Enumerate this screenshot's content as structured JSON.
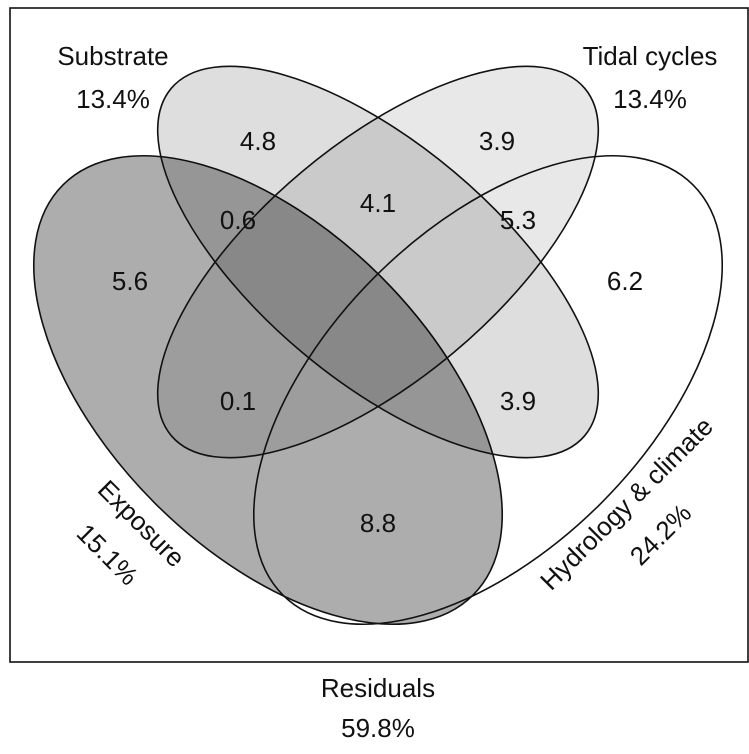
{
  "sets": [
    {
      "name": "Substrate",
      "value": "13.4%"
    },
    {
      "name": "Tidal cycles",
      "value": "13.4%"
    },
    {
      "name": "Exposure",
      "value": "15.1%"
    },
    {
      "name": "Hydrology & climate",
      "value": "24.2%"
    }
  ],
  "regions": [
    "4.8",
    "3.9",
    "4.1",
    "0.6",
    "5.3",
    "5.6",
    "6.2",
    "0.1",
    "3.9",
    "8.8"
  ],
  "residuals": {
    "name": "Residuals",
    "value": "59.8%"
  }
}
